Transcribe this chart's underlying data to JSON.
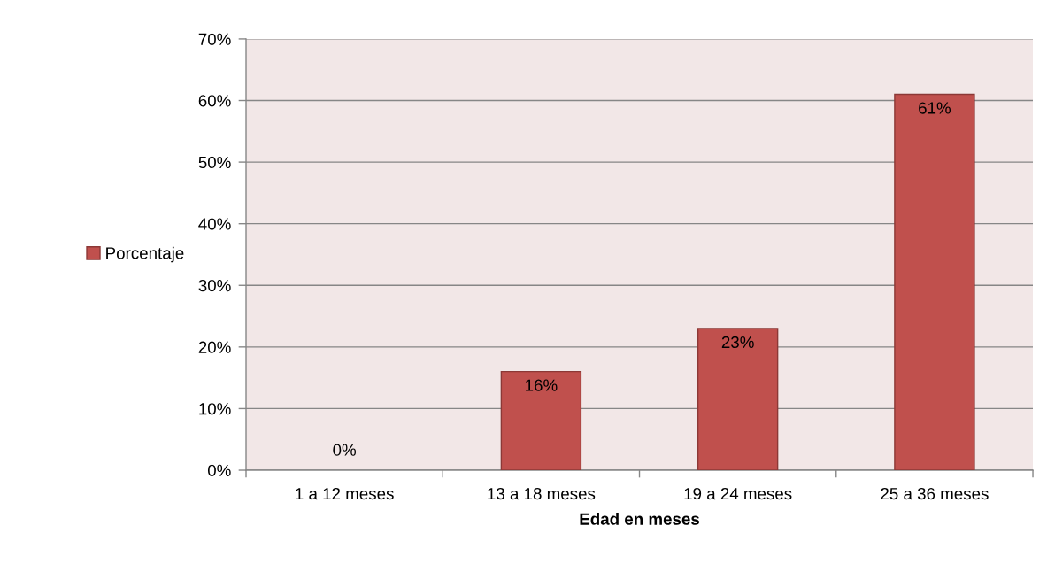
{
  "chart_data": {
    "type": "bar",
    "categories": [
      "1 a 12 meses",
      "13 a 18 meses",
      "19 a 24 meses",
      "25 a 36 meses"
    ],
    "series": [
      {
        "name": "Porcentaje",
        "color": "#c0504d",
        "values": [
          0,
          16,
          23,
          61
        ],
        "value_labels": [
          "0%",
          "16%",
          "23%",
          "61%"
        ]
      }
    ],
    "xlabel": "Edad en meses",
    "ylim": [
      0,
      70
    ],
    "yticks": [
      {
        "value": 0,
        "label": "0%"
      },
      {
        "value": 10,
        "label": "10%"
      },
      {
        "value": 20,
        "label": "20%"
      },
      {
        "value": 30,
        "label": "30%"
      },
      {
        "value": 40,
        "label": "40%"
      },
      {
        "value": 50,
        "label": "50%"
      },
      {
        "value": 60,
        "label": "60%"
      },
      {
        "value": 70,
        "label": "70%"
      }
    ],
    "grid": "y",
    "legend": "left"
  }
}
